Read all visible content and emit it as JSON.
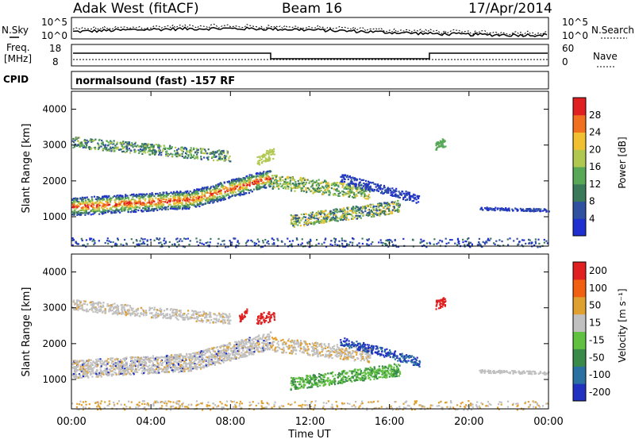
{
  "header": {
    "radar": "Adak West (fitACF)",
    "beam": "Beam 16",
    "date": "17/Apr/2014"
  },
  "noise_panel": {
    "left_label": "N.Sky",
    "right_label": "N.Search",
    "left_ticks": [
      "10^5",
      "10^0"
    ],
    "right_ticks": [
      "10^5",
      "10^0"
    ]
  },
  "freq_panel": {
    "left_label_1": "Freq.",
    "left_label_2": "[MHz]",
    "right_label": "Nave",
    "left_ticks": [
      "18",
      "8"
    ],
    "right_ticks": [
      "60",
      "0"
    ]
  },
  "cpid_panel": {
    "label": "CPID",
    "text": "normalsound (fast) -157 RF"
  },
  "chart_data": [
    {
      "type": "heatmap",
      "name_field": "power",
      "ylabel": "Slant Range [km]",
      "yticks": [
        "4000",
        "3000",
        "2000",
        "1000"
      ],
      "ytick_values": [
        4000,
        3000,
        2000,
        1000
      ],
      "ylim": [
        180,
        4500
      ],
      "xlim_hours": [
        0,
        24
      ],
      "colorbar_label": "Power [dB]",
      "colorbar_ticks": [
        "28",
        "24",
        "20",
        "16",
        "12",
        "8",
        "4"
      ],
      "colorbar_colors": [
        "#2030d0",
        "#3050a0",
        "#3a7a5a",
        "#58a858",
        "#b0c850",
        "#f0c030",
        "#f07020",
        "#e02020"
      ]
    },
    {
      "type": "heatmap",
      "name_field": "velocity",
      "ylabel": "Slant Range [km]",
      "yticks": [
        "4000",
        "3000",
        "2000",
        "1000"
      ],
      "ytick_values": [
        4000,
        3000,
        2000,
        1000
      ],
      "ylim": [
        180,
        4500
      ],
      "xlim_hours": [
        0,
        24
      ],
      "colorbar_label": "Velocity [m s⁻¹]",
      "colorbar_ticks": [
        "200",
        "100",
        "50",
        "15",
        "-15",
        "-50",
        "-100",
        "-200"
      ],
      "colorbar_colors": [
        "#2030c0",
        "#2a70a0",
        "#3a8a4a",
        "#60c040",
        "#c0c0c0",
        "#e0a030",
        "#f06010",
        "#e02020"
      ]
    }
  ],
  "xaxis": {
    "ticks": [
      "00:00",
      "04:00",
      "08:00",
      "12:00",
      "16:00",
      "20:00",
      "00:00"
    ],
    "label": "Time UT"
  }
}
